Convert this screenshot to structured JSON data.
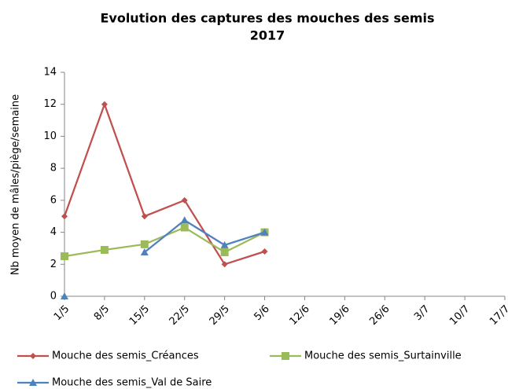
{
  "chart_data": {
    "type": "line",
    "title": [
      "Evolution des captures des mouches des semis",
      "2017"
    ],
    "y_label": "Nb moyen de mâles/piège/semaine",
    "categories": [
      "1/5",
      "8/5",
      "15/5",
      "22/5",
      "29/5",
      "5/6",
      "12/6",
      "19/6",
      "26/6",
      "3/7",
      "10/7",
      "17/7"
    ],
    "series": [
      {
        "name": "Mouche des semis_Créances",
        "color": "#c0504d",
        "marker": "diamond",
        "values": [
          5,
          12,
          5,
          6,
          2,
          2.8,
          null,
          null,
          null,
          null,
          null,
          null
        ]
      },
      {
        "name": "Mouche des semis_Surtainville",
        "color": "#9bbb59",
        "marker": "square",
        "values": [
          2.5,
          2.9,
          3.25,
          4.3,
          2.75,
          4.0,
          null,
          null,
          null,
          null,
          null,
          null
        ]
      },
      {
        "name": "Mouche des semis_Val de Saire",
        "color": "#4f81bd",
        "marker": "triangle",
        "values": [
          0,
          null,
          2.75,
          4.75,
          3.2,
          4.0,
          null,
          null,
          null,
          null,
          null,
          null
        ]
      }
    ],
    "ylim": [
      0,
      14
    ],
    "yticks": [
      0,
      2,
      4,
      6,
      8,
      10,
      12,
      14
    ],
    "grid": false,
    "legend": "bottom"
  }
}
